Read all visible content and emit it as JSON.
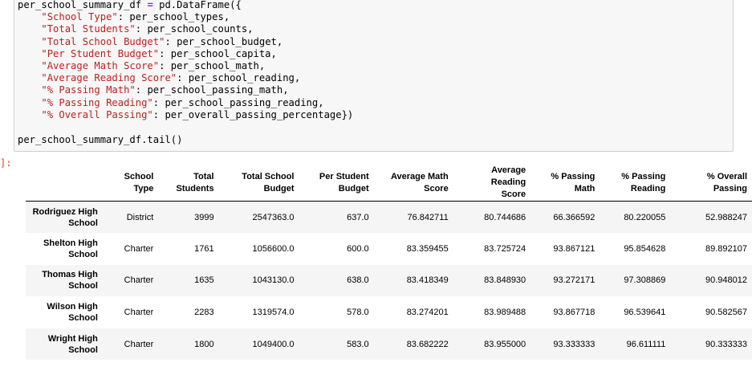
{
  "code": {
    "line1_var": "per_school_summary_df ",
    "line1_op": "=",
    "line1_rest": " pd.DataFrame({",
    "entries": [
      {
        "key": "\"School Type\"",
        "value": ": per_school_types,"
      },
      {
        "key": "\"Total Students\"",
        "value": ": per_school_counts,"
      },
      {
        "key": "\"Total School Budget\"",
        "value": ": per_school_budget,"
      },
      {
        "key": "\"Per Student Budget\"",
        "value": ": per_school_capita,"
      },
      {
        "key": "\"Average Math Score\"",
        "value": ": per_school_math,"
      },
      {
        "key": "\"Average Reading Score\"",
        "value": ": per_school_reading,"
      },
      {
        "key": "\"% Passing Math\"",
        "value": ": per_school_passing_math,"
      },
      {
        "key": "\"% Passing Reading\"",
        "value": ": per_school_passing_reading,"
      },
      {
        "key": "\"% Overall Passing\"",
        "value": ": per_overall_passing_percentage})"
      }
    ],
    "tail": "per_school_summary_df.tail()"
  },
  "output_prompt": "]:",
  "table": {
    "headers": [
      {
        "l1": "School",
        "l2": "Type"
      },
      {
        "l1": "Total",
        "l2": "Students"
      },
      {
        "l1": "Total School",
        "l2": "Budget"
      },
      {
        "l1": "Per Student",
        "l2": "Budget"
      },
      {
        "l1": "Average Math",
        "l2": "Score"
      },
      {
        "l1": "Average Reading",
        "l2": "Score"
      },
      {
        "l1": "% Passing",
        "l2": "Math"
      },
      {
        "l1": "% Passing",
        "l2": "Reading"
      },
      {
        "l1": "% Overall",
        "l2": "Passing"
      }
    ],
    "rows": [
      {
        "name_l1": "Rodriguez High",
        "name_l2": "School",
        "type": "District",
        "students": "3999",
        "budget": "2547363.0",
        "per_student": "637.0",
        "math": "76.842711",
        "reading": "80.744686",
        "pass_math": "66.366592",
        "pass_reading": "80.220055",
        "overall": "52.988247"
      },
      {
        "name_l1": "Shelton High",
        "name_l2": "School",
        "type": "Charter",
        "students": "1761",
        "budget": "1056600.0",
        "per_student": "600.0",
        "math": "83.359455",
        "reading": "83.725724",
        "pass_math": "93.867121",
        "pass_reading": "95.854628",
        "overall": "89.892107"
      },
      {
        "name_l1": "Thomas High",
        "name_l2": "School",
        "type": "Charter",
        "students": "1635",
        "budget": "1043130.0",
        "per_student": "638.0",
        "math": "83.418349",
        "reading": "83.848930",
        "pass_math": "93.272171",
        "pass_reading": "97.308869",
        "overall": "90.948012"
      },
      {
        "name_l1": "Wilson High",
        "name_l2": "School",
        "type": "Charter",
        "students": "2283",
        "budget": "1319574.0",
        "per_student": "578.0",
        "math": "83.274201",
        "reading": "83.989488",
        "pass_math": "93.867718",
        "pass_reading": "96.539641",
        "overall": "90.582567"
      },
      {
        "name_l1": "Wright High",
        "name_l2": "School",
        "type": "Charter",
        "students": "1800",
        "budget": "1049400.0",
        "per_student": "583.0",
        "math": "83.682222",
        "reading": "83.955000",
        "pass_math": "93.333333",
        "pass_reading": "96.611111",
        "overall": "90.333333"
      }
    ]
  }
}
